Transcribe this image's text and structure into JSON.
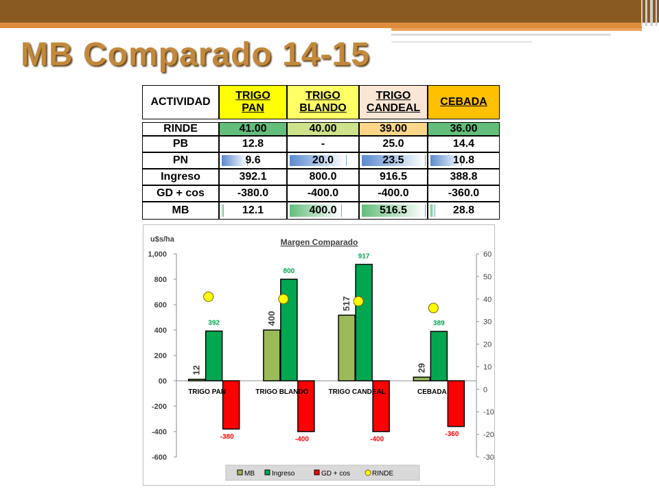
{
  "title": "MB Comparado 14-15",
  "table": {
    "header_label": "ACTIVIDAD",
    "columns": [
      {
        "line1": "TRIGO",
        "line2": "PAN",
        "color": "#ffff00"
      },
      {
        "line1": "TRIGO",
        "line2": "BLANDO",
        "color": "#ffff66"
      },
      {
        "line1": "TRIGO",
        "line2": "CANDEAL",
        "color": "#fbe6d6"
      },
      {
        "line1": "CEBADA",
        "line2": "",
        "color": "#ffc000"
      }
    ],
    "rows": [
      {
        "label": "RINDE",
        "values": [
          "41.00",
          "40.00",
          "39.00",
          "36.00"
        ],
        "colors": [
          "#63be7b",
          "#cde28a",
          "#fdd68a",
          "#63be7b"
        ]
      },
      {
        "label": "PB",
        "values": [
          "12.8",
          "-",
          "25.0",
          "14.4"
        ]
      },
      {
        "label": "PN",
        "values": [
          "9.6",
          "20.0",
          "23.5",
          "10.8"
        ],
        "databar": [
          0.41,
          0.85,
          1.0,
          0.46
        ],
        "bar_color": "#5b8bd0"
      },
      {
        "label": "Ingreso",
        "values": [
          "392.1",
          "800.0",
          "916.5",
          "388.8"
        ]
      },
      {
        "label": "GD + cos",
        "values": [
          "-380.0",
          "-400.0",
          "-400.0",
          "-360.0"
        ]
      },
      {
        "label": "MB",
        "values": [
          "12.1",
          "400.0",
          "516.5",
          "28.8"
        ],
        "databar": [
          0.02,
          0.77,
          1.0,
          0.06
        ],
        "bar_color": "#63be7b"
      }
    ]
  },
  "chart_data": {
    "type": "bar",
    "title": "Margen Comparado",
    "ylabel": "u$s/ha",
    "categories": [
      "TRIGO PAN",
      "TRIGO BLANDO",
      "TRIGO CANDEAL",
      "CEBADA"
    ],
    "ylim": [
      -600,
      1000
    ],
    "y_ticks": [
      "1,000",
      "800",
      "600",
      "400",
      "200",
      "00",
      "-200",
      "-400",
      "-600"
    ],
    "y2lim": [
      -30,
      60
    ],
    "y2_ticks": [
      "60",
      "50",
      "40",
      "30",
      "20",
      "10",
      "0",
      "-10",
      "-20",
      "-30"
    ],
    "series": [
      {
        "name": "MB",
        "values": [
          12,
          400,
          517,
          29
        ],
        "labels": [
          "12",
          "400",
          "517",
          "29"
        ],
        "color": "#9bbb59"
      },
      {
        "name": "Ingreso",
        "values": [
          392,
          800,
          917,
          389
        ],
        "labels": [
          "392",
          "800",
          "917",
          "389"
        ],
        "color": "#00a650"
      },
      {
        "name": "GD + cos",
        "values": [
          -380,
          -400,
          -400,
          -360
        ],
        "labels": [
          "-380",
          "-400",
          "-400",
          "-360"
        ],
        "color": "#ff0000"
      },
      {
        "name": "RINDE",
        "axis": "secondary",
        "values": [
          41,
          40,
          39,
          36
        ],
        "color": "#ffff00"
      }
    ],
    "legend_position": "bottom",
    "grid": false
  }
}
